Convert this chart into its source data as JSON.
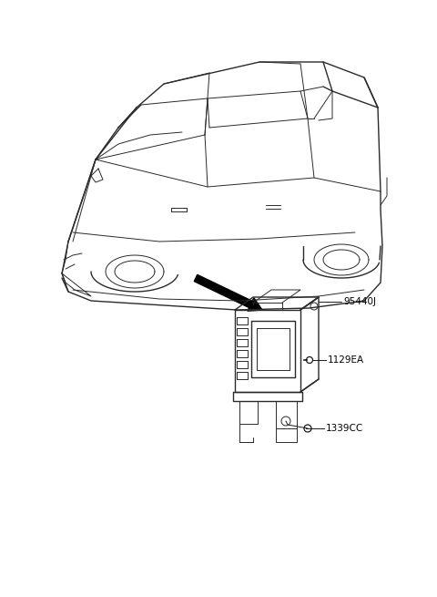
{
  "background_color": "#ffffff",
  "fig_width": 4.8,
  "fig_height": 6.55,
  "dpi": 100,
  "line_color": "#2a2a2a",
  "label_95440J": "95440J",
  "label_1129EA": "1129EA",
  "label_1339CC": "1339CC",
  "label_fontsize": 7.5
}
